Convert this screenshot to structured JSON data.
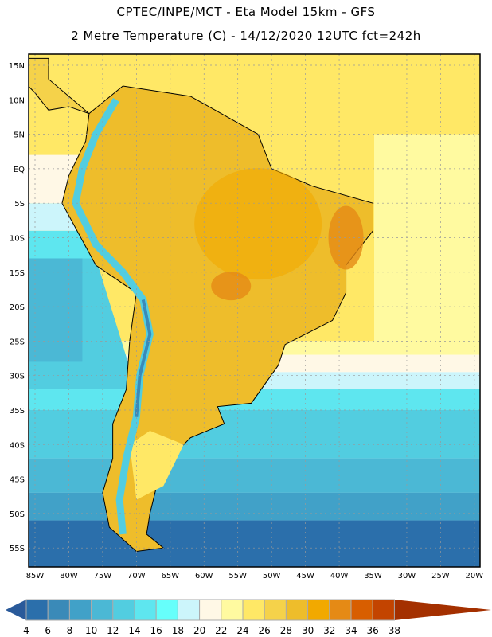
{
  "header": {
    "title_line1": "CPTEC/INPE/MCT -  Eta Model 15km - GFS",
    "title_line2": "2 Metre Temperature (C) - 14/12/2020 12UTC fct=242h"
  },
  "map": {
    "lat_labels": [
      "15N",
      "10N",
      "5N",
      "EQ",
      "5S",
      "10S",
      "15S",
      "20S",
      "25S",
      "30S",
      "35S",
      "40S",
      "45S",
      "50S",
      "55S"
    ],
    "lat_values": [
      15,
      10,
      5,
      0,
      -5,
      -10,
      -15,
      -20,
      -25,
      -30,
      -35,
      -40,
      -45,
      -50,
      -55
    ],
    "lon_labels": [
      "85W",
      "80W",
      "75W",
      "70W",
      "65W",
      "60W",
      "55W",
      "50W",
      "45W",
      "40W",
      "35W",
      "30W",
      "25W",
      "20W"
    ],
    "lon_values": [
      -85,
      -80,
      -75,
      -70,
      -65,
      -60,
      -55,
      -50,
      -45,
      -40,
      -35,
      -30,
      -25,
      -20
    ],
    "extent": {
      "lon": [
        -86,
        -19.5
      ],
      "lat": [
        16.5,
        -58
      ]
    }
  },
  "colorbar": {
    "labels": [
      "4",
      "6",
      "8",
      "10",
      "12",
      "14",
      "16",
      "18",
      "20",
      "22",
      "24",
      "26",
      "28",
      "30",
      "32",
      "34",
      "36",
      "38"
    ],
    "colors": [
      "#2b6fab",
      "#3a8ab8",
      "#41a1c8",
      "#4bb8d5",
      "#52cde0",
      "#5ee6ef",
      "#66fffb",
      "#ccf5fb",
      "#fff8e6",
      "#fffaa0",
      "#ffe866",
      "#f5d24a",
      "#eebd2b",
      "#f2a900",
      "#e58a15",
      "#d85e00",
      "#c34400"
    ],
    "under_color": "#2a5a9a",
    "over_color": "#a43000"
  }
}
